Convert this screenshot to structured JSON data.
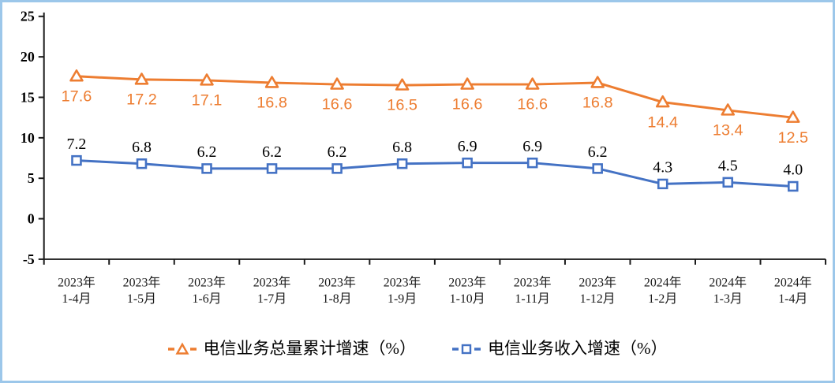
{
  "frame": {
    "border_color": "#9CC7EA",
    "background_color": "#FFFFFF"
  },
  "chart_data": {
    "type": "line",
    "title": "",
    "xlabel": "",
    "ylabel": "",
    "ylim": [
      -5,
      25
    ],
    "ytick_step": 5,
    "ytick_labels": [
      "-5",
      "0",
      "5",
      "10",
      "15",
      "20",
      "25"
    ],
    "grid": false,
    "legend_position": "bottom",
    "categories": [
      {
        "year": "2023年",
        "period": "1-4月"
      },
      {
        "year": "2023年",
        "period": "1-5月"
      },
      {
        "year": "2023年",
        "period": "1-6月"
      },
      {
        "year": "2023年",
        "period": "1-7月"
      },
      {
        "year": "2023年",
        "period": "1-8月"
      },
      {
        "year": "2023年",
        "period": "1-9月"
      },
      {
        "year": "2023年",
        "period": "1-10月"
      },
      {
        "year": "2023年",
        "period": "1-11月"
      },
      {
        "year": "2023年",
        "period": "1-12月"
      },
      {
        "year": "2024年",
        "period": "1-2月"
      },
      {
        "year": "2024年",
        "period": "1-3月"
      },
      {
        "year": "2024年",
        "period": "1-4月"
      }
    ],
    "series": [
      {
        "name": "电信业务总量累计增速（%）",
        "color": "#ED7D31",
        "marker": "triangle",
        "label_color": "#ED7D31",
        "label_position": "below",
        "values": [
          17.6,
          17.2,
          17.1,
          16.8,
          16.6,
          16.5,
          16.6,
          16.6,
          16.8,
          14.4,
          13.4,
          12.5
        ]
      },
      {
        "name": "电信业务收入增速（%）",
        "color": "#4472C4",
        "marker": "square",
        "label_color": "#000000",
        "label_position": "above",
        "values": [
          7.2,
          6.8,
          6.2,
          6.2,
          6.2,
          6.8,
          6.9,
          6.9,
          6.2,
          4.3,
          4.5,
          4.0
        ]
      }
    ]
  }
}
